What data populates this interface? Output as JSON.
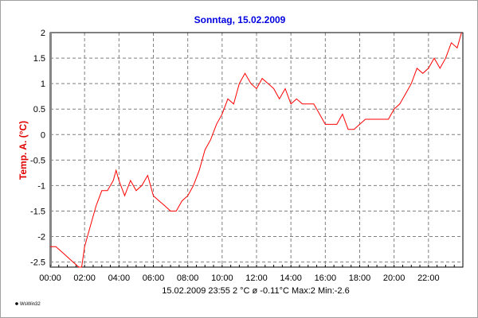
{
  "chart_data": {
    "type": "line",
    "title": "Sonntag, 15.02.2009",
    "xlabel": "",
    "ylabel": "Temp. A.  (°C)",
    "xlim": [
      0,
      24
    ],
    "ylim": [
      -2.6,
      2
    ],
    "grid": true,
    "line_color": "#ff0000",
    "title_color": "#0000e0",
    "ylabel_color": "#e00000",
    "x_ticks": [
      "00:00",
      "02:00",
      "04:00",
      "06:00",
      "08:00",
      "10:00",
      "12:00",
      "14:00",
      "16:00",
      "18:00",
      "20:00",
      "22:00"
    ],
    "y_ticks": [
      "2",
      "1.5",
      "1",
      "0.5",
      "0",
      "-0.5",
      "-1",
      "-1.5",
      "-2",
      "-2.5"
    ],
    "y_tick_values": [
      2,
      1.5,
      1,
      0.5,
      0,
      -0.5,
      -1,
      -1.5,
      -2,
      -2.5
    ],
    "x_hours": [
      0,
      0.33,
      0.67,
      1,
      1.33,
      1.67,
      1.83,
      2,
      2.33,
      2.67,
      3,
      3.33,
      3.67,
      3.83,
      4,
      4.33,
      4.67,
      5,
      5.33,
      5.67,
      6,
      6.33,
      6.67,
      7,
      7.33,
      7.67,
      8,
      8.33,
      8.67,
      9,
      9.33,
      9.67,
      10,
      10.33,
      10.67,
      11,
      11.33,
      11.67,
      12,
      12.33,
      12.67,
      13,
      13.33,
      13.67,
      14,
      14.33,
      14.67,
      15,
      15.33,
      15.67,
      16,
      16.33,
      16.67,
      17,
      17.33,
      17.67,
      18,
      18.33,
      18.67,
      19,
      19.33,
      19.67,
      20,
      20.33,
      20.67,
      21,
      21.33,
      21.67,
      22,
      22.33,
      22.67,
      23,
      23.33,
      23.67,
      23.92
    ],
    "values": [
      -2.2,
      -2.2,
      -2.3,
      -2.4,
      -2.5,
      -2.6,
      -2.6,
      -2.2,
      -1.8,
      -1.4,
      -1.1,
      -1.1,
      -0.9,
      -0.7,
      -0.9,
      -1.2,
      -0.9,
      -1.1,
      -1.0,
      -0.8,
      -1.2,
      -1.3,
      -1.4,
      -1.5,
      -1.5,
      -1.3,
      -1.2,
      -1.0,
      -0.7,
      -0.3,
      -0.1,
      0.2,
      0.4,
      0.7,
      0.6,
      1.0,
      1.2,
      1.0,
      0.9,
      1.1,
      1.0,
      0.9,
      0.7,
      0.9,
      0.6,
      0.7,
      0.6,
      0.6,
      0.6,
      0.4,
      0.2,
      0.2,
      0.2,
      0.4,
      0.1,
      0.1,
      0.2,
      0.3,
      0.3,
      0.3,
      0.3,
      0.3,
      0.5,
      0.6,
      0.8,
      1.0,
      1.3,
      1.2,
      1.3,
      1.5,
      1.3,
      1.5,
      1.8,
      1.7,
      2.0
    ],
    "summary": "15.02.2009  23:55   2 °C   ø -0.11°C  Max:2  Min:-2.6",
    "logo": "WsWin32"
  }
}
